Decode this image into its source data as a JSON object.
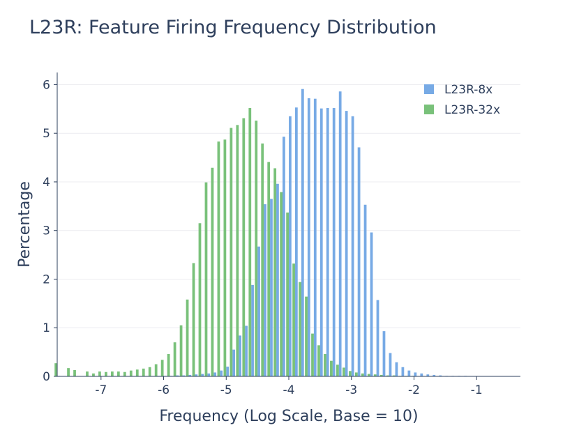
{
  "chart_data": {
    "type": "bar",
    "title": "L23R: Feature Firing Frequency Distribution",
    "xlabel": "Frequency (Log Scale, Base = 10)",
    "ylabel": "Percentage",
    "xlim": [
      -7.7,
      -0.3
    ],
    "ylim": [
      0,
      6.25
    ],
    "x_ticks": [
      -7,
      -6,
      -5,
      -4,
      -3,
      -2,
      -1
    ],
    "y_ticks": [
      0,
      1,
      2,
      3,
      4,
      5,
      6
    ],
    "grid": "horizontal",
    "legend_position": "top-right",
    "x": [
      -7.7,
      -7.6,
      -7.5,
      -7.4,
      -7.3,
      -7.2,
      -7.1,
      -7.0,
      -6.9,
      -6.8,
      -6.7,
      -6.6,
      -6.5,
      -6.4,
      -6.3,
      -6.2,
      -6.1,
      -6.0,
      -5.9,
      -5.8,
      -5.7,
      -5.6,
      -5.5,
      -5.4,
      -5.3,
      -5.2,
      -5.1,
      -5.0,
      -4.9,
      -4.8,
      -4.7,
      -4.6,
      -4.5,
      -4.4,
      -4.3,
      -4.2,
      -4.1,
      -4.0,
      -3.9,
      -3.8,
      -3.7,
      -3.6,
      -3.5,
      -3.4,
      -3.3,
      -3.2,
      -3.1,
      -3.0,
      -2.9,
      -2.8,
      -2.7,
      -2.6,
      -2.5,
      -2.4,
      -2.3,
      -2.2,
      -2.1,
      -2.0,
      -1.9,
      -1.8,
      -1.7,
      -1.6,
      -1.5,
      -1.4,
      -1.3,
      -1.2,
      -1.1,
      -1.0,
      -0.9,
      -0.8,
      -0.7,
      -0.6,
      -0.5,
      -0.4
    ],
    "series": [
      {
        "name": "L23R-8x",
        "color": "#77aae5",
        "values": [
          0.01,
          0,
          0,
          0,
          0,
          0,
          0,
          0,
          0,
          0,
          0,
          0,
          0,
          0,
          0,
          0,
          0.01,
          0.01,
          0.01,
          0.02,
          0.02,
          0.03,
          0.04,
          0.05,
          0.06,
          0.08,
          0.12,
          0.2,
          0.55,
          0.84,
          1.04,
          1.88,
          2.67,
          3.54,
          3.65,
          3.96,
          4.93,
          5.35,
          5.53,
          5.91,
          5.72,
          5.71,
          5.51,
          5.52,
          5.52,
          5.86,
          5.46,
          5.35,
          4.71,
          3.53,
          2.96,
          1.57,
          0.93,
          0.48,
          0.29,
          0.19,
          0.12,
          0.08,
          0.06,
          0.04,
          0.03,
          0.02,
          0.01,
          0.01,
          0.01,
          0.01,
          0,
          0,
          0,
          0,
          0,
          0,
          0,
          0
        ]
      },
      {
        "name": "L23R-32x",
        "color": "#79c17a",
        "values": [
          0.27,
          0,
          0.17,
          0.13,
          0,
          0.1,
          0.06,
          0.1,
          0.09,
          0.1,
          0.1,
          0.09,
          0.12,
          0.14,
          0.16,
          0.19,
          0.25,
          0.34,
          0.46,
          0.7,
          1.05,
          1.58,
          2.33,
          3.15,
          3.99,
          4.29,
          4.83,
          4.87,
          5.11,
          5.17,
          5.31,
          5.52,
          5.26,
          4.79,
          4.41,
          4.28,
          3.79,
          3.37,
          2.32,
          1.94,
          1.64,
          0.88,
          0.64,
          0.46,
          0.32,
          0.24,
          0.18,
          0.11,
          0.08,
          0.06,
          0.05,
          0.04,
          0.03,
          0.02,
          0.02,
          0.01,
          0.01,
          0.01,
          0,
          0,
          0,
          0,
          0,
          0,
          0,
          0,
          0,
          0,
          0,
          0,
          0,
          0,
          0,
          0
        ]
      }
    ]
  }
}
